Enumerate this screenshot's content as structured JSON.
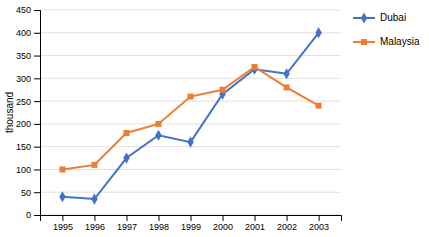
{
  "chart_data": {
    "type": "line",
    "ylabel": "thousand",
    "x": [
      1995,
      1996,
      1997,
      1998,
      1999,
      2000,
      2001,
      2002,
      2003
    ],
    "xlim": [
      1994.3,
      2003.7
    ],
    "xticks": [
      1995,
      1996,
      1997,
      1998,
      1999,
      2000,
      2001,
      2002,
      2003
    ],
    "ylim": [
      0,
      450
    ],
    "yticks": [
      0,
      50,
      100,
      150,
      200,
      250,
      300,
      350,
      400,
      450
    ],
    "grid": true,
    "legend": "right",
    "series": [
      {
        "name": "Dubai",
        "color": "#4472C4",
        "marker": "diamond",
        "values": [
          40,
          35,
          125,
          175,
          160,
          265,
          320,
          310,
          400
        ]
      },
      {
        "name": "Malaysia",
        "color": "#ED7D31",
        "marker": "square",
        "values": [
          100,
          110,
          180,
          200,
          260,
          275,
          325,
          280,
          240
        ]
      }
    ]
  }
}
